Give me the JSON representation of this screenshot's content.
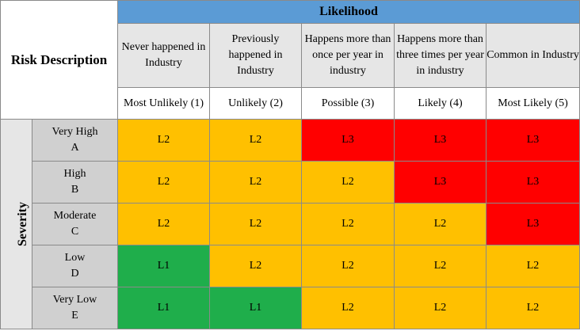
{
  "corner_label": "Risk Description",
  "likelihood_title": "Likelihood",
  "severity_title": "Severity",
  "columns": [
    {
      "description": "Never happened in Industry",
      "rank": "Most Unlikely (1)"
    },
    {
      "description": "Previously happened in Industry",
      "rank": "Unlikely (2)"
    },
    {
      "description": "Happens more than once per year in industry",
      "rank": "Possible (3)"
    },
    {
      "description": "Happens more than three times per year in industry",
      "rank": "Likely (4)"
    },
    {
      "description": "Common in Industry",
      "rank": "Most Likely (5)"
    }
  ],
  "rows": [
    {
      "name": "Very High",
      "code": "A",
      "cells": [
        "L2",
        "L2",
        "L3",
        "L3",
        "L3"
      ]
    },
    {
      "name": "High",
      "code": "B",
      "cells": [
        "L2",
        "L2",
        "L2",
        "L3",
        "L3"
      ]
    },
    {
      "name": "Moderate",
      "code": "C",
      "cells": [
        "L2",
        "L2",
        "L2",
        "L2",
        "L3"
      ]
    },
    {
      "name": "Low",
      "code": "D",
      "cells": [
        "L1",
        "L2",
        "L2",
        "L2",
        "L2"
      ]
    },
    {
      "name": "Very Low",
      "code": "E",
      "cells": [
        "L1",
        "L1",
        "L2",
        "L2",
        "L2"
      ]
    }
  ],
  "level_colors": {
    "L1": "#1fae4b",
    "L2": "#ffc000",
    "L3": "#ff0000"
  },
  "header_color": "#5b9bd5"
}
